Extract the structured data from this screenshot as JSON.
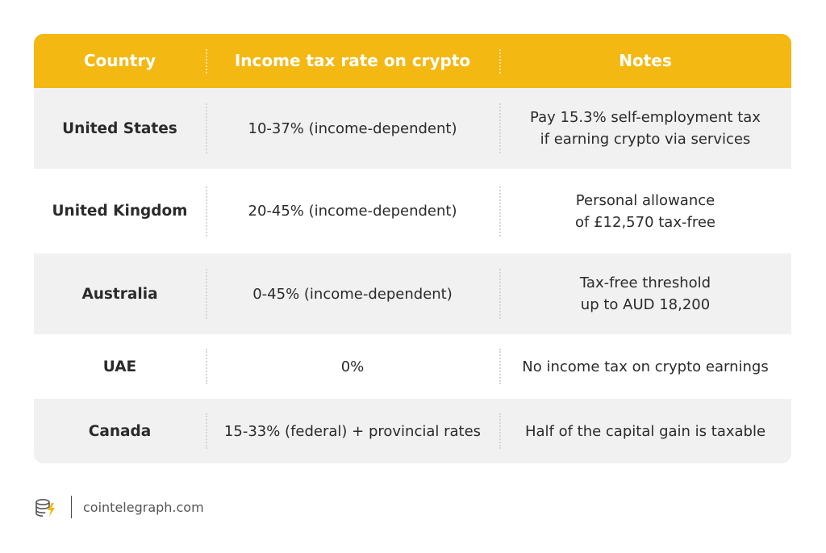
{
  "table": {
    "headers": [
      "Country",
      "Income tax rate on crypto",
      "Notes"
    ],
    "rows": [
      {
        "country": "United States",
        "rate": "10-37% (income-dependent)",
        "notes": [
          "Pay 15.3% self-employment tax",
          "if earning crypto via services"
        ]
      },
      {
        "country": "United Kingdom",
        "rate": "20-45% (income-dependent)",
        "notes": [
          "Personal allowance",
          "of £12,570 tax-free"
        ]
      },
      {
        "country": "Australia",
        "rate": "0-45% (income-dependent)",
        "notes": [
          "Tax-free threshold",
          "up to AUD 18,200"
        ]
      },
      {
        "country": "UAE",
        "rate": "0%",
        "notes": [
          "No income tax on crypto earnings"
        ]
      },
      {
        "country": "Canada",
        "rate": "15-33% (federal) + provincial rates",
        "notes": [
          "Half of the capital gain is taxable"
        ]
      }
    ]
  },
  "footer": {
    "logo_icon": "cointelegraph-coin-logo-icon",
    "site": "cointelegraph.com"
  },
  "colors": {
    "header_bg": "#f3b812",
    "row_shade": "#f1f1f1"
  }
}
